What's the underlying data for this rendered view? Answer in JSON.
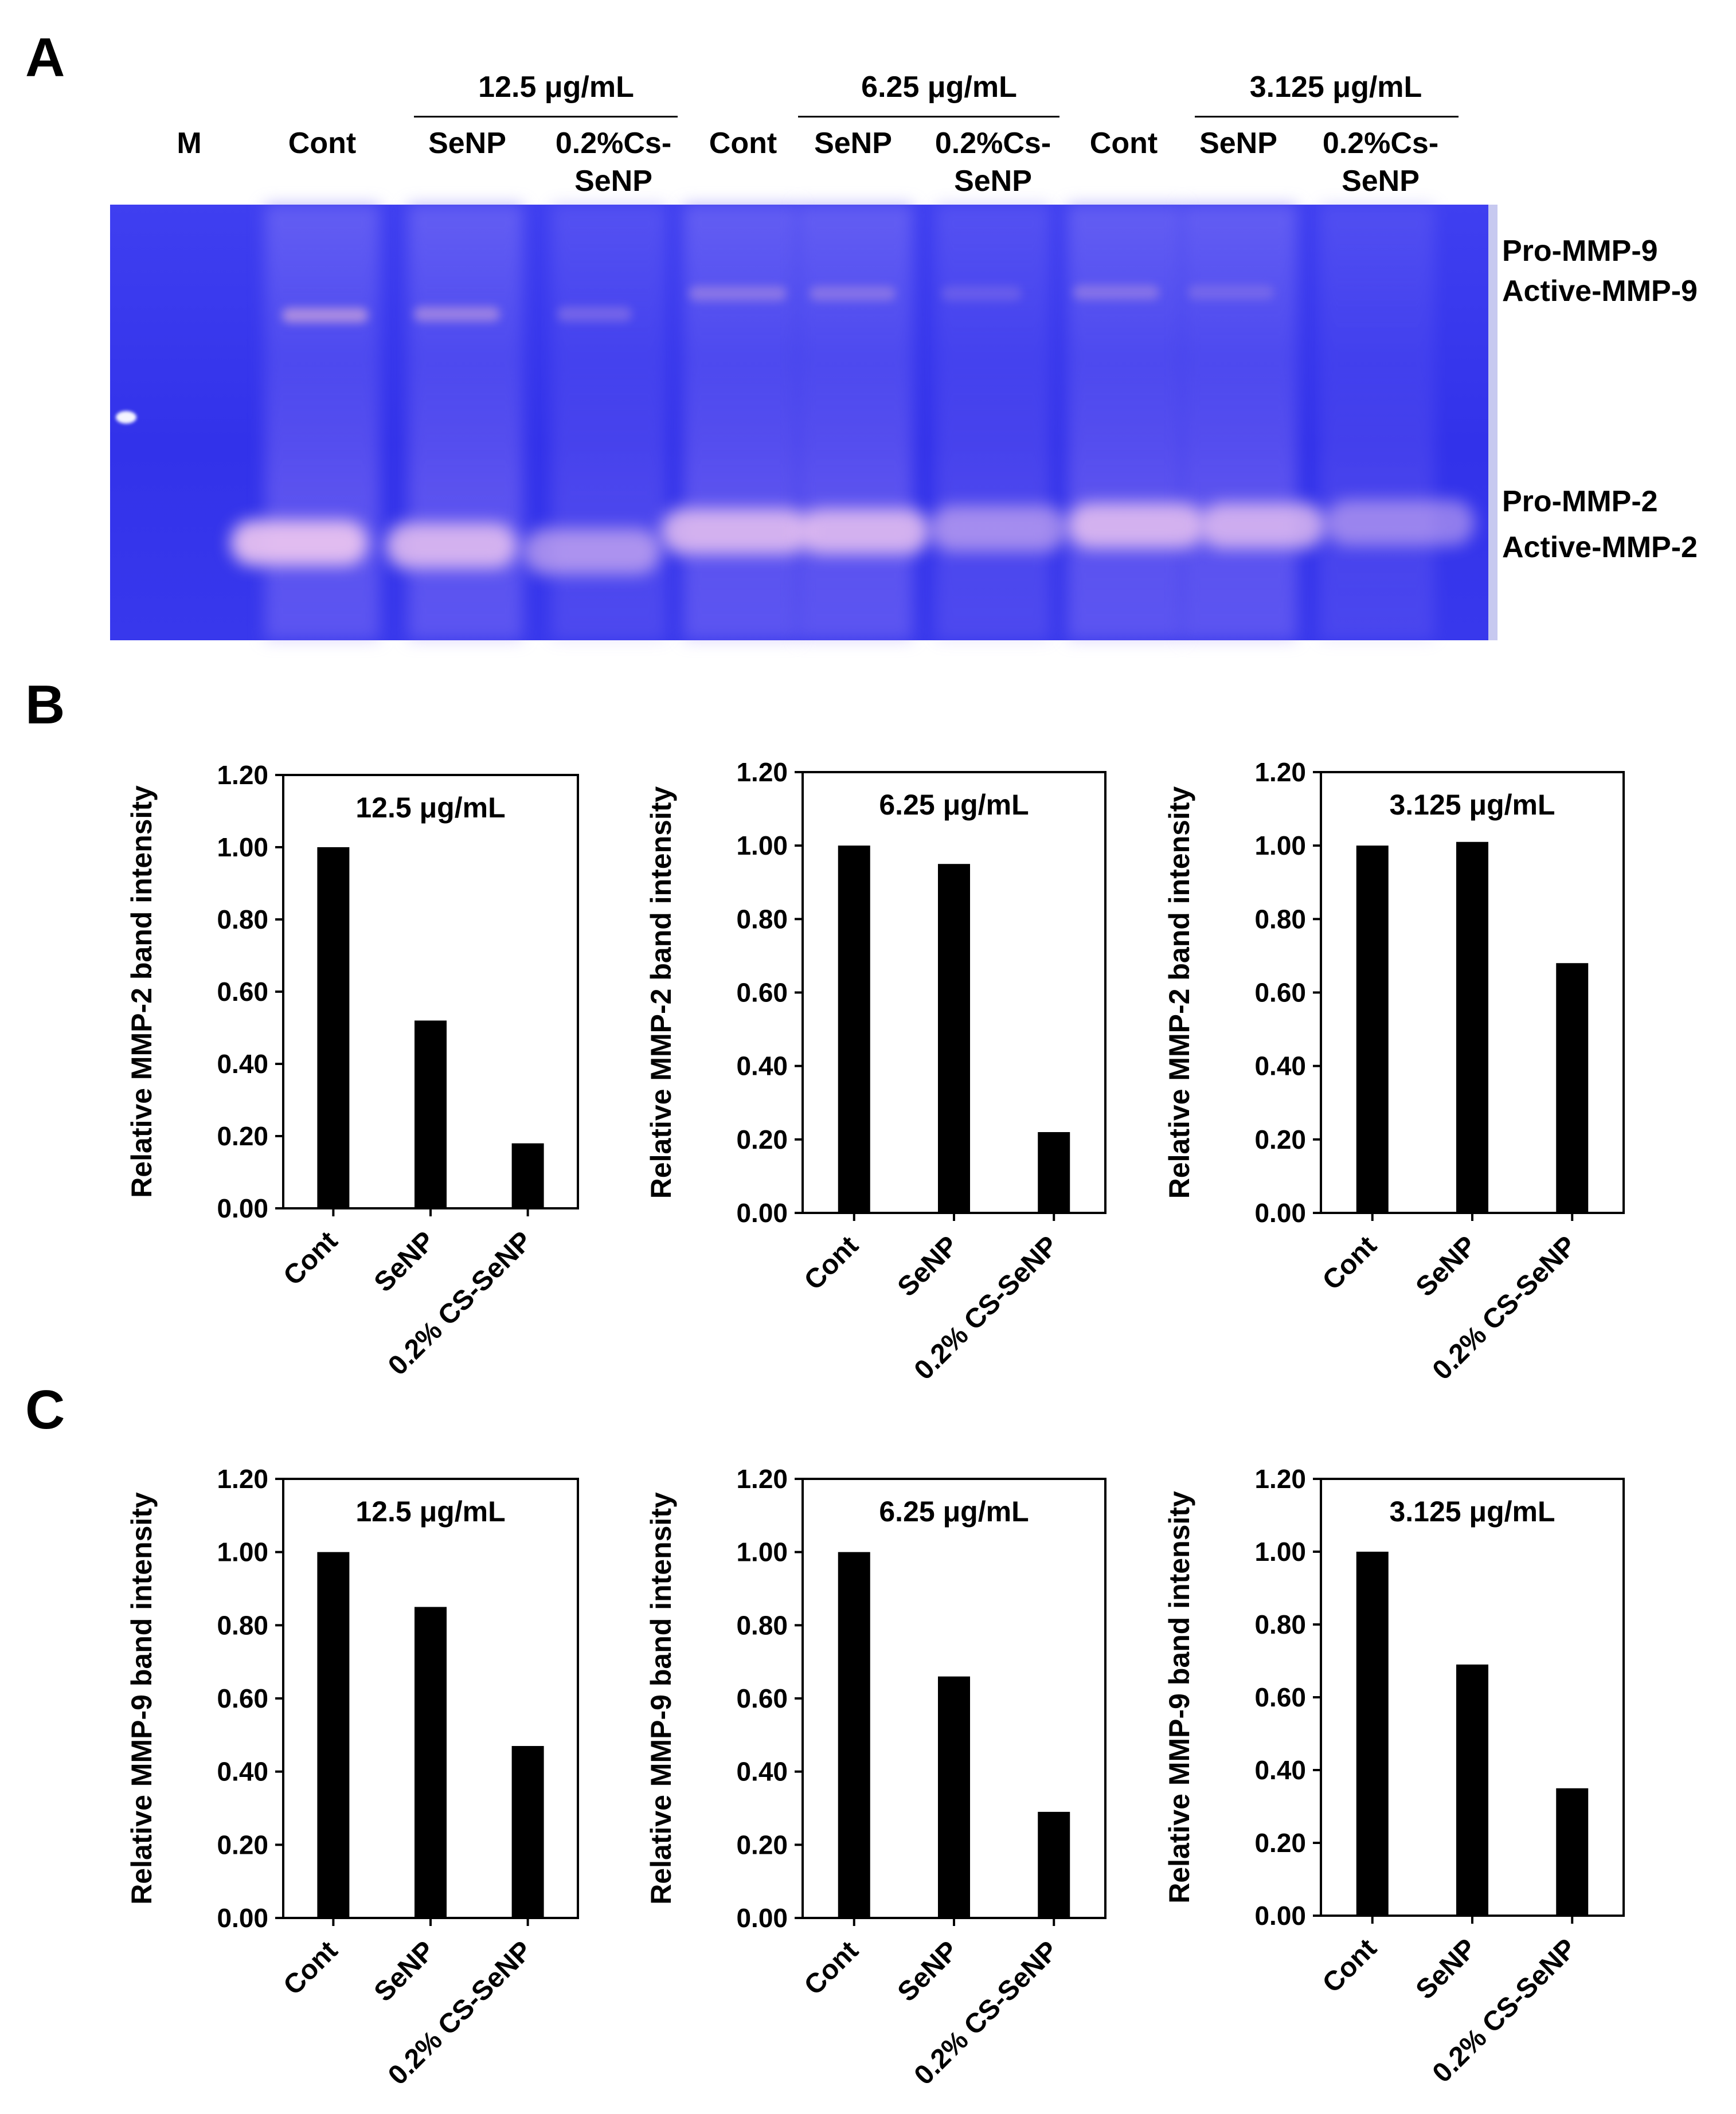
{
  "panels": {
    "A": "A",
    "B": "B",
    "C": "C"
  },
  "gel": {
    "marker_label": "M",
    "conc_headers": [
      "12.5 μg/mL",
      "6.25 μg/mL",
      "3.125 μg/mL"
    ],
    "lanes": {
      "cont": "Cont",
      "senp": "SeNP",
      "cs_line1": "0.2%Cs-",
      "cs_line2": "SeNP"
    },
    "band_labels": {
      "pro_mmp9": "Pro-MMP-9",
      "active_mmp9": "Active-MMP-9",
      "pro_mmp2": "Pro-MMP-2",
      "active_mmp2": "Active-MMP-2"
    },
    "colors": {
      "gel_background": "#3636ec",
      "band": "#e8c8f0"
    }
  },
  "chart_data": [
    {
      "type": "bar",
      "panel": "B",
      "title": "12.5 μg/mL",
      "categories": [
        "Cont",
        "SeNP",
        "0.2% CS-SeNP"
      ],
      "values": [
        1.0,
        0.52,
        0.18
      ],
      "ylabel": "Relative MMP-2 band intensity",
      "yticks": [
        "0.00",
        "0.20",
        "0.40",
        "0.60",
        "0.80",
        "1.00",
        "1.20"
      ],
      "ylim": [
        0,
        1.2
      ]
    },
    {
      "type": "bar",
      "panel": "B",
      "title": "6.25 μg/mL",
      "categories": [
        "Cont",
        "SeNP",
        "0.2% CS-SeNP"
      ],
      "values": [
        1.0,
        0.95,
        0.22
      ],
      "ylabel": "Relative MMP-2 band intensity",
      "yticks": [
        "0.00",
        "0.20",
        "0.40",
        "0.60",
        "0.80",
        "1.00",
        "1.20"
      ],
      "ylim": [
        0,
        1.2
      ]
    },
    {
      "type": "bar",
      "panel": "B",
      "title": "3.125 μg/mL",
      "categories": [
        "Cont",
        "SeNP",
        "0.2% CS-SeNP"
      ],
      "values": [
        1.0,
        1.01,
        0.68
      ],
      "ylabel": "Relative MMP-2 band intensity",
      "yticks": [
        "0.00",
        "0.20",
        "0.40",
        "0.60",
        "0.80",
        "1.00",
        "1.20"
      ],
      "ylim": [
        0,
        1.2
      ]
    },
    {
      "type": "bar",
      "panel": "C",
      "title": "12.5 μg/mL",
      "categories": [
        "Cont",
        "SeNP",
        "0.2% CS-SeNP"
      ],
      "values": [
        1.0,
        0.85,
        0.47
      ],
      "ylabel": "Relative MMP-9 band intensity",
      "yticks": [
        "0.00",
        "0.20",
        "0.40",
        "0.60",
        "0.80",
        "1.00",
        "1.20"
      ],
      "ylim": [
        0,
        1.2
      ]
    },
    {
      "type": "bar",
      "panel": "C",
      "title": "6.25 μg/mL",
      "categories": [
        "Cont",
        "SeNP",
        "0.2% CS-SeNP"
      ],
      "values": [
        1.0,
        0.66,
        0.29
      ],
      "ylabel": "Relative MMP-9 band intensity",
      "yticks": [
        "0.00",
        "0.20",
        "0.40",
        "0.60",
        "0.80",
        "1.00",
        "1.20"
      ],
      "ylim": [
        0,
        1.2
      ]
    },
    {
      "type": "bar",
      "panel": "C",
      "title": "3.125 μg/mL",
      "categories": [
        "Cont",
        "SeNP",
        "0.2% CS-SeNP"
      ],
      "values": [
        1.0,
        0.69,
        0.35
      ],
      "ylabel": "Relative MMP-9 band intensity",
      "yticks": [
        "0.00",
        "0.20",
        "0.40",
        "0.60",
        "0.80",
        "1.00",
        "1.20"
      ],
      "ylim": [
        0,
        1.2
      ]
    }
  ]
}
